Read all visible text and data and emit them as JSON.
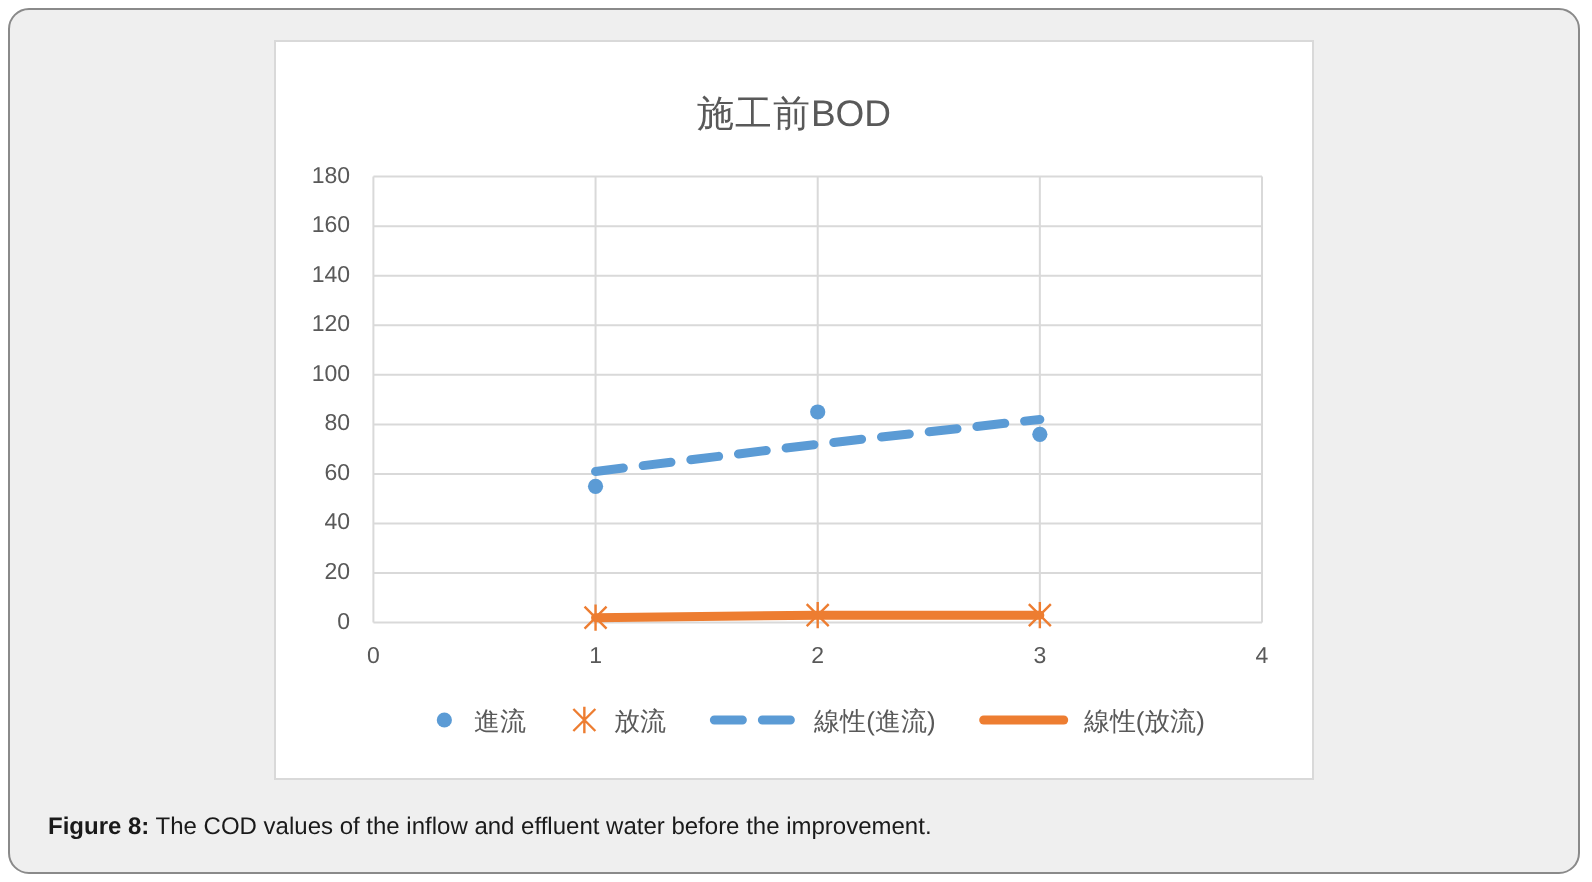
{
  "chart_data": {
    "type": "scatter",
    "title": "施工前BOD",
    "x": [
      1,
      2,
      3
    ],
    "series": [
      {
        "name": "進流",
        "color": "#5b9bd5",
        "marker": "circle",
        "values": [
          55,
          85,
          76
        ]
      },
      {
        "name": "放流",
        "color": "#ed7d31",
        "marker": "cross",
        "values": [
          2,
          3,
          3
        ]
      },
      {
        "name": "線性(進流)",
        "type": "line",
        "color": "#5b9bd5",
        "line_style": "dashed",
        "values": [
          61,
          72,
          82
        ]
      },
      {
        "name": "線性(放流)",
        "type": "line",
        "color": "#ed7d31",
        "line_style": "solid",
        "values": [
          2,
          3,
          3
        ]
      }
    ],
    "xlim": [
      0,
      4
    ],
    "xticks": [
      0,
      1,
      2,
      3,
      4
    ],
    "ylim": [
      0,
      180
    ],
    "yticks": [
      0,
      20,
      40,
      60,
      80,
      100,
      120,
      140,
      160,
      180
    ],
    "grid": true,
    "legend": "bottom",
    "annotations": [
      "**Figure 8:** The COD values of the inflow and effluent water before the improvement."
    ]
  }
}
